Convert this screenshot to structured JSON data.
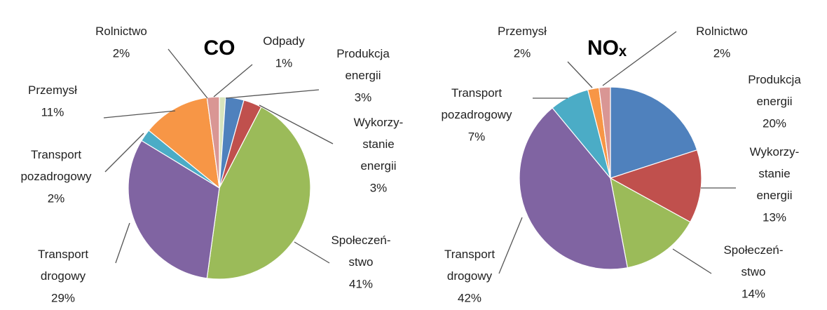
{
  "chart_data": [
    {
      "type": "pie",
      "title": "CO",
      "categories": [
        "Odpady",
        "Produkcja\nenergii",
        "Wykorzy-\nstanie\nenergii",
        "Społeczeń-\nstwo",
        "Transport\ndrogowy",
        "Transport\npozadrogowy",
        "Przemysł",
        "Rolnictwo"
      ],
      "values": [
        1,
        3,
        3,
        41,
        29,
        2,
        11,
        2
      ],
      "value_labels": [
        "1%",
        "3%",
        "3%",
        "41%",
        "29%",
        "2%",
        "11%",
        "2%"
      ],
      "colors": [
        "#d7e4bd",
        "#4f81bd",
        "#c0504d",
        "#9bbb59",
        "#8064a2",
        "#4bacc6",
        "#f79646",
        "#d99694"
      ]
    },
    {
      "type": "pie",
      "title": "NOₓ",
      "categories": [
        "Produkcja\nenergii",
        "Wykorzy-\nstanie\nenergii",
        "Społeczeń-\nstwo",
        "Transport\ndrogowy",
        "Transport\npozadrogowy",
        "Przemysł",
        "Rolnictwo"
      ],
      "values": [
        20,
        13,
        14,
        42,
        7,
        2,
        2
      ],
      "value_labels": [
        "20%",
        "13%",
        "14%",
        "42%",
        "7%",
        "2%",
        "2%"
      ],
      "colors": [
        "#4f81bd",
        "#c0504d",
        "#9bbb59",
        "#8064a2",
        "#4bacc6",
        "#f79646",
        "#d99694"
      ]
    }
  ]
}
